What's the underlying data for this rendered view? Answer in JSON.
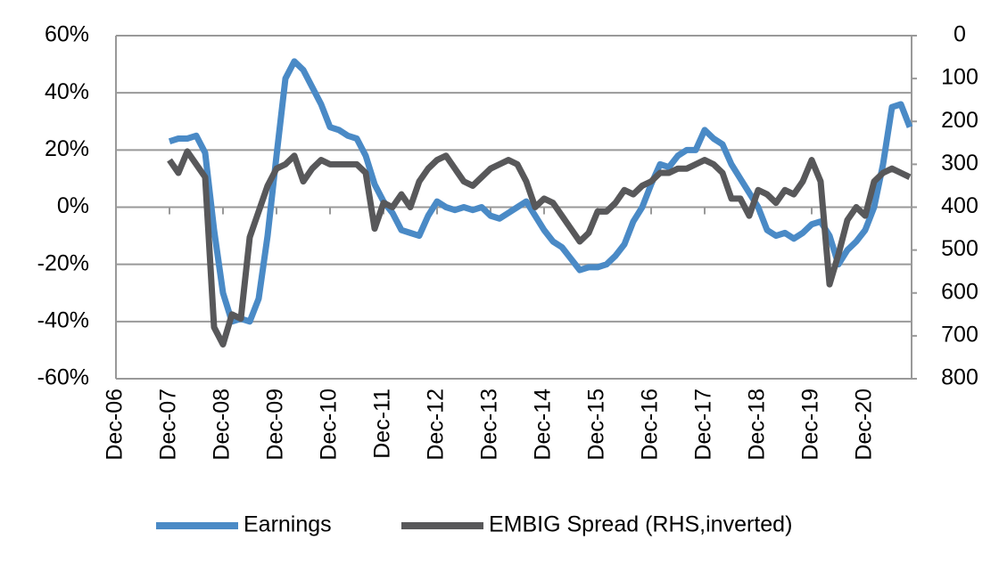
{
  "chart_data": {
    "type": "line",
    "categories": [
      "Dec-06",
      null,
      null,
      null,
      null,
      null,
      "Dec-07",
      null,
      null,
      null,
      null,
      null,
      "Dec-08",
      null,
      null,
      null,
      null,
      null,
      "Dec-09",
      null,
      null,
      null,
      null,
      null,
      "Dec-10",
      null,
      null,
      null,
      null,
      null,
      "Dec-11",
      null,
      null,
      null,
      null,
      null,
      "Dec-12",
      null,
      null,
      null,
      null,
      null,
      "Dec-13",
      null,
      null,
      null,
      null,
      null,
      "Dec-14",
      null,
      null,
      null,
      null,
      null,
      "Dec-15",
      null,
      null,
      null,
      null,
      null,
      "Dec-16",
      null,
      null,
      null,
      null,
      null,
      "Dec-17",
      null,
      null,
      null,
      null,
      null,
      "Dec-18",
      null,
      null,
      null,
      null,
      null,
      "Dec-19",
      null,
      null,
      null,
      null,
      null,
      "Dec-20",
      null,
      null,
      null,
      null,
      null
    ],
    "series": [
      {
        "name": "Earnings",
        "color": "#4a8ac6",
        "values": [
          null,
          null,
          null,
          null,
          null,
          null,
          23,
          24,
          24,
          25,
          19,
          -8,
          -30,
          -40,
          -39,
          -40,
          -32,
          -10,
          18,
          45,
          51,
          48,
          42,
          36,
          28,
          27,
          25,
          24,
          18,
          8,
          2,
          -2,
          -8,
          -9,
          -10,
          -3,
          2,
          0,
          -1,
          0,
          -1,
          0,
          -3,
          -4,
          -2,
          0,
          2,
          -3,
          -8,
          -12,
          -14,
          -18,
          -22,
          -21,
          -21,
          -20,
          -17,
          -13,
          -5,
          0,
          8,
          15,
          14,
          18,
          20,
          20,
          27,
          24,
          22,
          15,
          10,
          5,
          0,
          -8,
          -10,
          -9,
          -11,
          -9,
          -6,
          -5,
          -10,
          -20,
          -15,
          -12,
          -8,
          0,
          15,
          35,
          36,
          28
        ]
      },
      {
        "name": "EMBIG Spread (RHS,inverted)",
        "color": "#58585a",
        "axis": "y2",
        "values": [
          null,
          null,
          null,
          null,
          null,
          null,
          290,
          320,
          270,
          300,
          330,
          680,
          720,
          650,
          660,
          470,
          410,
          350,
          310,
          300,
          280,
          340,
          310,
          290,
          300,
          300,
          300,
          300,
          320,
          450,
          390,
          400,
          370,
          400,
          340,
          310,
          290,
          280,
          310,
          340,
          350,
          330,
          310,
          300,
          290,
          300,
          340,
          400,
          380,
          390,
          420,
          450,
          480,
          460,
          410,
          410,
          390,
          360,
          370,
          350,
          340,
          320,
          320,
          310,
          310,
          300,
          290,
          300,
          320,
          380,
          380,
          420,
          360,
          370,
          390,
          360,
          370,
          340,
          290,
          340,
          580,
          510,
          430,
          400,
          420,
          340,
          320,
          310,
          320,
          330
        ]
      }
    ],
    "ylim": [
      -60,
      60
    ],
    "yticks": [
      {
        "value": -60,
        "label": "-60%"
      },
      {
        "value": -40,
        "label": "-40%"
      },
      {
        "value": -20,
        "label": "-20%"
      },
      {
        "value": 0,
        "label": "0%"
      },
      {
        "value": 20,
        "label": "20%"
      },
      {
        "value": 40,
        "label": "40%"
      },
      {
        "value": 60,
        "label": "60%"
      }
    ],
    "y2lim": [
      800,
      0
    ],
    "y2ticks": [
      0,
      100,
      200,
      300,
      400,
      500,
      600,
      700,
      800
    ],
    "grid": true,
    "legend": "bottom"
  }
}
